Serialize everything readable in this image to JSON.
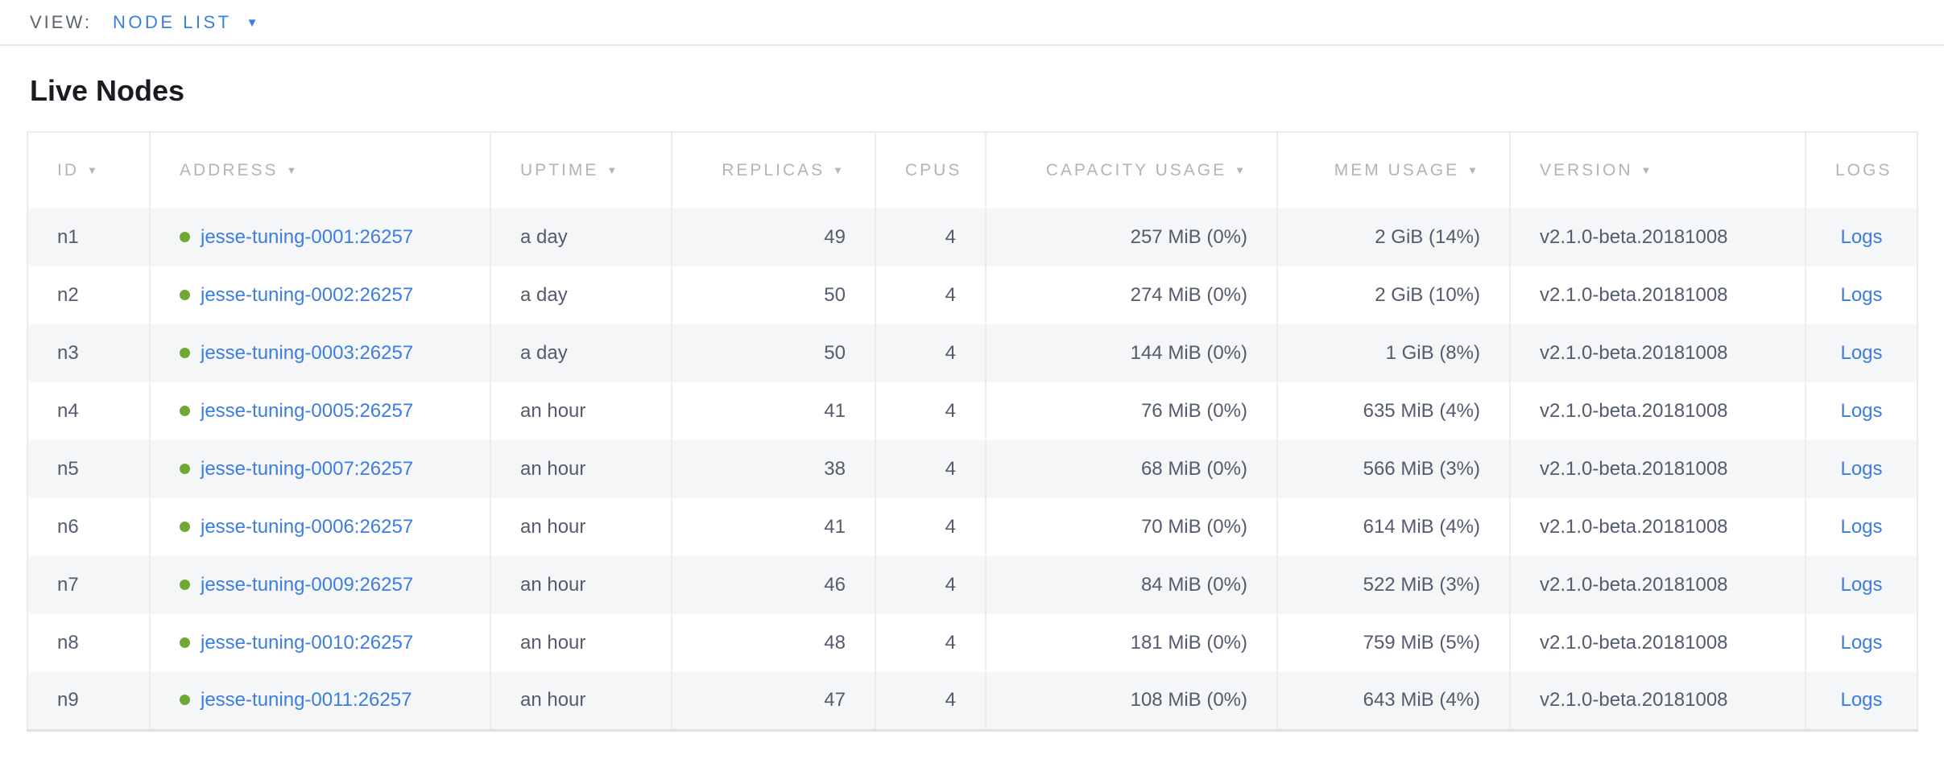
{
  "toolbar": {
    "view_label": "VIEW:",
    "view_value": "NODE LIST"
  },
  "page": {
    "title": "Live Nodes"
  },
  "colors": {
    "link_blue": "#3b7de1",
    "live_dot_green": "#71a834",
    "header_gray": "#b1b4b9",
    "body_text": "#535b6d",
    "row_stripe": "#f5f6f7"
  },
  "table": {
    "columns": [
      {
        "key": "id",
        "label": "ID",
        "sorted": true,
        "align": "left"
      },
      {
        "key": "address",
        "label": "ADDRESS",
        "sorted": true,
        "align": "left"
      },
      {
        "key": "uptime",
        "label": "UPTIME",
        "sorted": true,
        "align": "left"
      },
      {
        "key": "replicas",
        "label": "REPLICAS",
        "sorted": true,
        "align": "right"
      },
      {
        "key": "cpus",
        "label": "CPUS",
        "sorted": false,
        "align": "right"
      },
      {
        "key": "capacity",
        "label": "CAPACITY USAGE",
        "sorted": true,
        "align": "right"
      },
      {
        "key": "mem",
        "label": "MEM USAGE",
        "sorted": true,
        "align": "right"
      },
      {
        "key": "version",
        "label": "VERSION",
        "sorted": true,
        "align": "left"
      },
      {
        "key": "logs",
        "label": "LOGS",
        "sorted": false,
        "align": "center"
      }
    ],
    "rows": [
      {
        "id": "n1",
        "status": "live",
        "address": "jesse-tuning-0001:26257",
        "uptime": "a day",
        "replicas": "49",
        "cpus": "4",
        "capacity": "257 MiB (0%)",
        "mem": "2 GiB (14%)",
        "version": "v2.1.0-beta.20181008",
        "logs": "Logs"
      },
      {
        "id": "n2",
        "status": "live",
        "address": "jesse-tuning-0002:26257",
        "uptime": "a day",
        "replicas": "50",
        "cpus": "4",
        "capacity": "274 MiB (0%)",
        "mem": "2 GiB (10%)",
        "version": "v2.1.0-beta.20181008",
        "logs": "Logs"
      },
      {
        "id": "n3",
        "status": "live",
        "address": "jesse-tuning-0003:26257",
        "uptime": "a day",
        "replicas": "50",
        "cpus": "4",
        "capacity": "144 MiB (0%)",
        "mem": "1 GiB (8%)",
        "version": "v2.1.0-beta.20181008",
        "logs": "Logs"
      },
      {
        "id": "n4",
        "status": "live",
        "address": "jesse-tuning-0005:26257",
        "uptime": "an hour",
        "replicas": "41",
        "cpus": "4",
        "capacity": "76 MiB (0%)",
        "mem": "635 MiB (4%)",
        "version": "v2.1.0-beta.20181008",
        "logs": "Logs"
      },
      {
        "id": "n5",
        "status": "live",
        "address": "jesse-tuning-0007:26257",
        "uptime": "an hour",
        "replicas": "38",
        "cpus": "4",
        "capacity": "68 MiB (0%)",
        "mem": "566 MiB (3%)",
        "version": "v2.1.0-beta.20181008",
        "logs": "Logs"
      },
      {
        "id": "n6",
        "status": "live",
        "address": "jesse-tuning-0006:26257",
        "uptime": "an hour",
        "replicas": "41",
        "cpus": "4",
        "capacity": "70 MiB (0%)",
        "mem": "614 MiB (4%)",
        "version": "v2.1.0-beta.20181008",
        "logs": "Logs"
      },
      {
        "id": "n7",
        "status": "live",
        "address": "jesse-tuning-0009:26257",
        "uptime": "an hour",
        "replicas": "46",
        "cpus": "4",
        "capacity": "84 MiB (0%)",
        "mem": "522 MiB (3%)",
        "version": "v2.1.0-beta.20181008",
        "logs": "Logs"
      },
      {
        "id": "n8",
        "status": "live",
        "address": "jesse-tuning-0010:26257",
        "uptime": "an hour",
        "replicas": "48",
        "cpus": "4",
        "capacity": "181 MiB (0%)",
        "mem": "759 MiB (5%)",
        "version": "v2.1.0-beta.20181008",
        "logs": "Logs"
      },
      {
        "id": "n9",
        "status": "live",
        "address": "jesse-tuning-0011:26257",
        "uptime": "an hour",
        "replicas": "47",
        "cpus": "4",
        "capacity": "108 MiB (0%)",
        "mem": "643 MiB (4%)",
        "version": "v2.1.0-beta.20181008",
        "logs": "Logs"
      }
    ]
  }
}
